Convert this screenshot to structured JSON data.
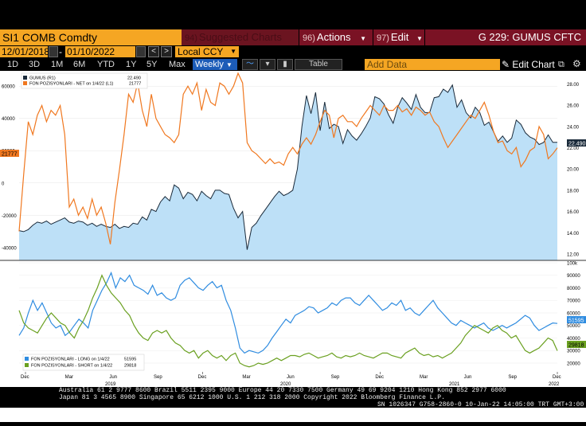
{
  "toolbar": {
    "ticker": "SI1 COMB Comdty",
    "suggested_num": "94)",
    "suggested_label": "Suggested Charts",
    "actions_num": "96)",
    "actions_label": "Actions",
    "edit_num": "97)",
    "edit_label": "Edit",
    "chart_id": "G 229: GUMUS CFTC",
    "start_date": "12/01/2018",
    "end_date": "01/10/2022",
    "currency": "Local CCY",
    "periods": [
      "1D",
      "3D",
      "1M",
      "6M",
      "YTD",
      "1Y",
      "5Y",
      "Max"
    ],
    "frequency": "Weekly",
    "table_label": "Table",
    "add_data_placeholder": "Add Data",
    "edit_chart_label": "Edit Chart"
  },
  "colors": {
    "orange": "#f5a623",
    "maroon": "#7a1224",
    "selected_blue": "#1c5cb8",
    "gumus_fill": "#bde0f7",
    "gumus_line": "#1a2a3a",
    "net_line": "#f07820",
    "long_line": "#2f8ce0",
    "short_line": "#6aa020"
  },
  "chart_data": [
    {
      "type": "line",
      "legend": [
        {
          "name": "GUMUS (R1)",
          "value": "22.490"
        },
        {
          "name": "FON POZISYONLARI - NET on 1/4/22 (L1)",
          "value": "21777"
        }
      ],
      "left_ticks": [
        "60000",
        "40000",
        "20000",
        "0",
        "-20000",
        "-40000"
      ],
      "right_ticks": [
        "28.00",
        "26.00",
        "24.00",
        "22.00",
        "20.00",
        "18.00",
        "16.00",
        "14.00",
        "12.00"
      ],
      "right_ylim": [
        11.4,
        29
      ],
      "left_ylim": [
        -48000,
        68000
      ],
      "last_price_label": "22.490",
      "last_net_label": "21777",
      "series": [
        {
          "name": "GUMUS",
          "axis": "right",
          "style": "area",
          "values": [
            14.2,
            14.1,
            14.3,
            14.7,
            15.0,
            14.9,
            15.1,
            14.8,
            15.0,
            15.2,
            15.4,
            15.0,
            14.9,
            15.1,
            15.0,
            14.7,
            14.9,
            14.6,
            14.8,
            14.6,
            14.5,
            14.8,
            14.4,
            14.6,
            14.5,
            14.9,
            14.8,
            15.5,
            15.2,
            16.2,
            16.0,
            16.9,
            17.4,
            17.0,
            18.5,
            18.2,
            17.2,
            17.8,
            17.6,
            17.0,
            17.9,
            17.5,
            17.2,
            18.0,
            18.0,
            17.7,
            17.6,
            16.3,
            15.4,
            16.0,
            12.4,
            14.5,
            14.9,
            15.6,
            16.2,
            16.8,
            17.4,
            17.9,
            17.5,
            17.7,
            18.0,
            20.0,
            24.0,
            26.9,
            25.2,
            27.2,
            23.6,
            26.3,
            23.8,
            24.2,
            24.0,
            22.4,
            23.7,
            23.1,
            22.7,
            23.3,
            24.0,
            24.8,
            26.8,
            26.6,
            26.1,
            25.1,
            24.3,
            25.8,
            26.7,
            26.2,
            25.6,
            27.0,
            25.8,
            25.3,
            25.3,
            26.7,
            26.8,
            27.5,
            27.2,
            27.9,
            25.8,
            26.5,
            25.3,
            24.8,
            25.8,
            25.3,
            24.1,
            24.4,
            23.5,
            22.6,
            23.1,
            22.5,
            22.9,
            24.6,
            24.2,
            23.4,
            23.0,
            22.8,
            22.3,
            22.5,
            23.2,
            22.5,
            22.5
          ]
        },
        {
          "name": "FON POZISYONLARI - NET",
          "axis": "left",
          "style": "line",
          "values": [
            -30000,
            5000,
            38000,
            30000,
            42000,
            48000,
            38000,
            45000,
            42000,
            48000,
            30000,
            -15000,
            -10000,
            -20000,
            -15000,
            -22000,
            -10000,
            -20000,
            -15000,
            -25000,
            -38000,
            -12000,
            8000,
            30000,
            55000,
            50000,
            62000,
            45000,
            35000,
            55000,
            40000,
            35000,
            30000,
            28000,
            25000,
            30000,
            55000,
            60000,
            55000,
            62000,
            45000,
            58000,
            50000,
            48000,
            62000,
            60000,
            55000,
            60000,
            68000,
            62000,
            25000,
            20000,
            18000,
            15000,
            12000,
            15000,
            12000,
            13000,
            11000,
            18000,
            22000,
            18000,
            24000,
            28000,
            24000,
            30000,
            38000,
            45000,
            42000,
            28000,
            40000,
            42000,
            38000,
            38000,
            35000,
            40000,
            44000,
            48000,
            45000,
            42000,
            48000,
            45000,
            45000,
            48000,
            44000,
            46000,
            42000,
            47000,
            45000,
            42000,
            44000,
            38000,
            35000,
            28000,
            22000,
            26000,
            30000,
            34000,
            38000,
            42000,
            40000,
            45000,
            50000,
            42000,
            32000,
            25000,
            26000,
            20000,
            18000,
            22000,
            10000,
            14000,
            20000,
            22000,
            35000,
            30000,
            15000,
            18000,
            21777
          ]
        }
      ]
    },
    {
      "type": "line",
      "legend": [
        {
          "name": "FON POZISYONLARI - LONG on 1/4/22",
          "value": "51595"
        },
        {
          "name": "FON POZISYONLARI - SHORT on 1/4/22",
          "value": "29818"
        }
      ],
      "right_ticks": [
        "100k",
        "90000",
        "80000",
        "70000",
        "60000",
        "50000",
        "40000",
        "30000",
        "20000"
      ],
      "ylim": [
        13000,
        100000
      ],
      "last_long_label": "51595",
      "last_short_label": "29818",
      "series": [
        {
          "name": "LONG",
          "values": [
            42000,
            48000,
            60000,
            70000,
            62000,
            68000,
            60000,
            52000,
            48000,
            50000,
            42000,
            45000,
            50000,
            55000,
            52000,
            48000,
            62000,
            70000,
            78000,
            84000,
            92000,
            80000,
            88000,
            85000,
            90000,
            82000,
            80000,
            78000,
            75000,
            82000,
            74000,
            76000,
            72000,
            70000,
            72000,
            82000,
            86000,
            88000,
            84000,
            80000,
            78000,
            82000,
            85000,
            80000,
            82000,
            70000,
            62000,
            48000,
            32000,
            28000,
            30000,
            29000,
            28000,
            30000,
            34000,
            40000,
            45000,
            50000,
            55000,
            52000,
            58000,
            60000,
            62000,
            65000,
            64000,
            60000,
            62000,
            64000,
            68000,
            66000,
            70000,
            72000,
            72000,
            68000,
            66000,
            70000,
            74000,
            70000,
            66000,
            62000,
            64000,
            68000,
            66000,
            70000,
            62000,
            64000,
            60000,
            58000,
            62000,
            66000,
            70000,
            64000,
            60000,
            56000,
            52000,
            50000,
            54000,
            52000,
            50000,
            48000,
            50000,
            52000,
            48000,
            46000,
            48000,
            50000,
            48000,
            50000,
            52000,
            55000,
            58000,
            56000,
            50000,
            46000,
            48000,
            50000,
            52000,
            51595
          ]
        },
        {
          "name": "SHORT",
          "values": [
            62000,
            52000,
            48000,
            46000,
            44000,
            50000,
            56000,
            60000,
            56000,
            52000,
            50000,
            44000,
            40000,
            48000,
            54000,
            62000,
            72000,
            80000,
            90000,
            82000,
            76000,
            72000,
            68000,
            62000,
            58000,
            50000,
            44000,
            40000,
            38000,
            44000,
            46000,
            44000,
            46000,
            40000,
            36000,
            34000,
            30000,
            28000,
            30000,
            24000,
            28000,
            30000,
            26000,
            24000,
            26000,
            22000,
            26000,
            28000,
            20000,
            18000,
            17000,
            18000,
            20000,
            19000,
            20000,
            22000,
            24000,
            22000,
            24000,
            26000,
            26000,
            25000,
            27000,
            28000,
            26000,
            24000,
            25000,
            26000,
            28000,
            25000,
            24000,
            26000,
            25000,
            26000,
            28000,
            26000,
            25000,
            24000,
            26000,
            28000,
            28000,
            26000,
            25000,
            24000,
            28000,
            30000,
            32000,
            28000,
            26000,
            27000,
            25000,
            26000,
            24000,
            26000,
            28000,
            32000,
            36000,
            42000,
            46000,
            50000,
            48000,
            46000,
            44000,
            48000,
            50000,
            46000,
            44000,
            40000,
            42000,
            36000,
            30000,
            28000,
            30000,
            32000,
            36000,
            40000,
            38000,
            29818
          ]
        }
      ]
    }
  ],
  "x_axis": {
    "month_labels": [
      "Dec",
      "Mar",
      "Jun",
      "Sep",
      "Dec",
      "Mar",
      "Jun",
      "Sep",
      "Dec",
      "Mar",
      "Jun",
      "Sep",
      "Dec"
    ],
    "year_labels": [
      "2019",
      "2020",
      "2021",
      "2022"
    ]
  },
  "footer": {
    "line1": "Australia 61 2 9777 8600 Brazil 5511 2395 9000 Europe 44 20 7330 7500 Germany 49 69 9204 1210 Hong Kong 852 2977 6000",
    "line2": "Japan 81 3 4565 8900        Singapore 65 6212 1000        U.S. 1 212 318 2000           Copyright 2022 Bloomberg Finance L.P.",
    "line3": "SN 1026347 G758-2860-0 10-Jan-22 14:05:00 TRT  GMT+3:00"
  }
}
